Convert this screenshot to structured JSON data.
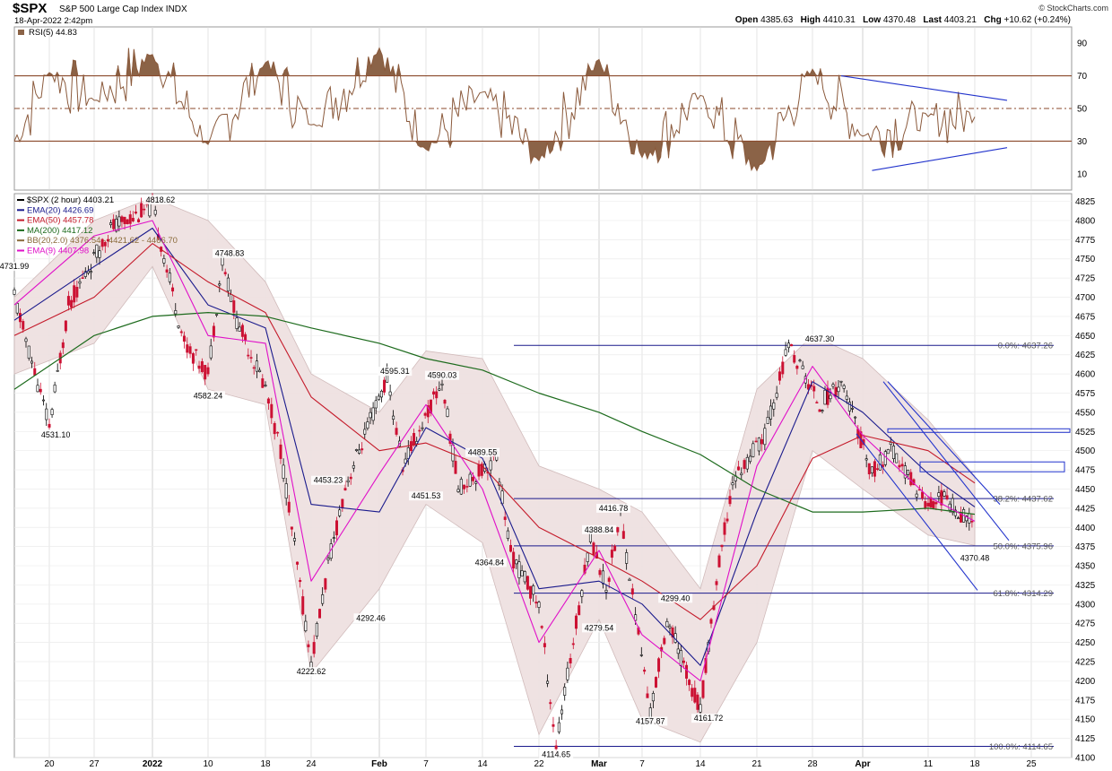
{
  "header": {
    "symbol": "$SPX",
    "name": "S&P 500 Large Cap Index",
    "exchange": "INDX",
    "date": "18-Apr-2022 2:42pm",
    "quote_labels": {
      "open": "Open",
      "high": "High",
      "low": "Low",
      "last": "Last",
      "chg": "Chg"
    },
    "quote_values": {
      "open": "4385.63",
      "high": "4410.31",
      "low": "4370.48",
      "last": "4403.21",
      "chg": "+10.62 (+0.24%)"
    },
    "brand": "© StockCharts.com"
  },
  "colors": {
    "candle_up": "#000000",
    "candle_down": "#cc1133",
    "ema20": "#1a1a8c",
    "ema50": "#c41a2a",
    "ma200": "#1d6b1d",
    "ema9": "#e010c8",
    "bb_fill": "#efe1e1",
    "bb_line": "#cfb8b8",
    "rsi_line": "#8b5a3c",
    "rsi_fill": "#8b6347",
    "fib_line": "#1a1a8c",
    "grid": "#d8d8d8"
  },
  "chart_data": [
    {
      "type": "line",
      "title": "RSI(5) 44.83",
      "legend": {
        "name": "RSI(5)",
        "value": "44.83"
      },
      "ylim": [
        0,
        100
      ],
      "y_ticks": [
        "90",
        "70",
        "50",
        "30",
        "10"
      ],
      "reference_lines": [
        70,
        50,
        30
      ],
      "x": [
        "Dec 17",
        "Dec 20",
        "Dec 27",
        "Jan 3",
        "Jan 10",
        "Jan 18",
        "Jan 24",
        "Feb 1",
        "Feb 7",
        "Feb 14",
        "Feb 22",
        "Mar 1",
        "Mar 7",
        "Mar 14",
        "Mar 21",
        "Mar 28",
        "Apr 4",
        "Apr 11",
        "Apr 18"
      ],
      "series": [
        {
          "name": "RSI(5)",
          "values": [
            30,
            72,
            55,
            83,
            28,
            78,
            40,
            87,
            25,
            60,
            18,
            80,
            20,
            58,
            12,
            74,
            33,
            45,
            44.83
          ]
        }
      ],
      "annotations": [
        "triangle pattern Apr 1 to Apr 20, upper line from 70 to 55, lower line from 12 to 26"
      ]
    },
    {
      "type": "line",
      "title": "$SPX (2 hour) 4403.21",
      "legend": [
        {
          "name": "$SPX (2 hour)",
          "value": "4403.21"
        },
        {
          "name": "EMA(20)",
          "value": "4426.69"
        },
        {
          "name": "EMA(50)",
          "value": "4457.78"
        },
        {
          "name": "MA(200)",
          "value": "4417.12"
        },
        {
          "name": "BB(20,2.0)",
          "value": "4376.54 - 4421.62 - 4466.70"
        },
        {
          "name": "EMA(9)",
          "value": "4407.98"
        }
      ],
      "ylim": [
        4100,
        4835
      ],
      "y_ticks": [
        "4825",
        "4800",
        "4775",
        "4750",
        "4725",
        "4700",
        "4675",
        "4650",
        "4625",
        "4600",
        "4575",
        "4550",
        "4525",
        "4500",
        "4475",
        "4450",
        "4425",
        "4400",
        "4375",
        "4350",
        "4325",
        "4300",
        "4275",
        "4250",
        "4225",
        "4200",
        "4175",
        "4150",
        "4125",
        "4100"
      ],
      "x_ticks": [
        "20",
        "27",
        "2022",
        "10",
        "18",
        "24",
        "Feb",
        "7",
        "14",
        "22",
        "Mar",
        "7",
        "14",
        "21",
        "28",
        "Apr",
        "11",
        "18",
        "25"
      ],
      "series": [
        {
          "name": "$SPX (2 hour)",
          "x": [
            "Dec 17",
            "Dec 20",
            "Dec 23",
            "Dec 29",
            "Jan 3",
            "Jan 7",
            "Jan 10",
            "Jan 12",
            "Jan 14",
            "Jan 18",
            "Jan 20",
            "Jan 24",
            "Jan 26",
            "Jan 28",
            "Feb 2",
            "Feb 4",
            "Feb 9",
            "Feb 11",
            "Feb 16",
            "Feb 18",
            "Feb 22",
            "Feb 24",
            "Feb 28",
            "Mar 2",
            "Mar 4",
            "Mar 8",
            "Mar 10",
            "Mar 14",
            "Mar 16",
            "Mar 18",
            "Mar 22",
            "Mar 25",
            "Mar 29",
            "Apr 1",
            "Apr 5",
            "Apr 7",
            "Apr 11",
            "Apr 13",
            "Apr 18"
          ],
          "values": [
            4700,
            4531.1,
            4690,
            4790,
            4818.62,
            4640,
            4600,
            4748.83,
            4670,
            4582.24,
            4500,
            4222.62,
            4350,
            4453.23,
            4595.31,
            4480,
            4590.03,
            4451.53,
            4489.55,
            4364.84,
            4300,
            4114.65,
            4388.84,
            4320,
            4416.78,
            4157.87,
            4280,
            4161.72,
            4330,
            4460,
            4520,
            4637.3,
            4560,
            4590,
            4470,
            4500,
            4430,
            4440,
            4403.21
          ]
        },
        {
          "name": "EMA(20)",
          "x": [
            "Dec 17",
            "Dec 27",
            "Jan 3",
            "Jan 10",
            "Jan 18",
            "Jan 24",
            "Feb 1",
            "Feb 7",
            "Feb 14",
            "Feb 22",
            "Mar 1",
            "Mar 7",
            "Mar 14",
            "Mar 21",
            "Mar 28",
            "Apr 4",
            "Apr 11",
            "Apr 18"
          ],
          "values": [
            4670,
            4740,
            4790,
            4690,
            4660,
            4430,
            4420,
            4530,
            4490,
            4320,
            4330,
            4300,
            4220,
            4420,
            4590,
            4550,
            4470,
            4426.69
          ]
        },
        {
          "name": "EMA(50)",
          "x": [
            "Dec 17",
            "Dec 27",
            "Jan 3",
            "Jan 10",
            "Jan 18",
            "Jan 24",
            "Feb 1",
            "Feb 7",
            "Feb 14",
            "Feb 22",
            "Mar 1",
            "Mar 7",
            "Mar 14",
            "Mar 21",
            "Mar 28",
            "Apr 4",
            "Apr 11",
            "Apr 18"
          ],
          "values": [
            4650,
            4700,
            4770,
            4720,
            4680,
            4570,
            4500,
            4510,
            4480,
            4400,
            4360,
            4330,
            4280,
            4350,
            4490,
            4520,
            4500,
            4457.78
          ]
        },
        {
          "name": "MA(200)",
          "x": [
            "Dec 17",
            "Dec 27",
            "Jan 3",
            "Jan 10",
            "Jan 18",
            "Jan 24",
            "Feb 1",
            "Feb 7",
            "Feb 14",
            "Feb 22",
            "Mar 1",
            "Mar 7",
            "Mar 14",
            "Mar 21",
            "Mar 28",
            "Apr 4",
            "Apr 11",
            "Apr 18"
          ],
          "values": [
            4580,
            4650,
            4675,
            4680,
            4675,
            4660,
            4640,
            4620,
            4605,
            4575,
            4550,
            4525,
            4495,
            4450,
            4420,
            4420,
            4425,
            4417.12
          ]
        },
        {
          "name": "EMA(9)",
          "x": [
            "Dec 17",
            "Dec 27",
            "Jan 3",
            "Jan 10",
            "Jan 18",
            "Jan 24",
            "Feb 1",
            "Feb 7",
            "Feb 14",
            "Feb 22",
            "Mar 1",
            "Mar 7",
            "Mar 14",
            "Mar 21",
            "Mar 28",
            "Apr 4",
            "Apr 11",
            "Apr 18"
          ],
          "values": [
            4690,
            4780,
            4800,
            4650,
            4640,
            4330,
            4470,
            4560,
            4450,
            4250,
            4370,
            4260,
            4200,
            4480,
            4610,
            4520,
            4440,
            4407.98
          ]
        }
      ],
      "bollinger_bands": {
        "x": [
          "Dec 17",
          "Dec 27",
          "Jan 3",
          "Jan 10",
          "Jan 18",
          "Jan 24",
          "Feb 1",
          "Feb 7",
          "Feb 14",
          "Feb 22",
          "Mar 1",
          "Mar 7",
          "Mar 14",
          "Mar 21",
          "Mar 28",
          "Apr 4",
          "Apr 11",
          "Apr 18"
        ],
        "upper": [
          4700,
          4800,
          4830,
          4800,
          4720,
          4600,
          4550,
          4630,
          4620,
          4480,
          4450,
          4420,
          4320,
          4580,
          4650,
          4620,
          4540,
          4466.7
        ],
        "lower": [
          4600,
          4640,
          4740,
          4580,
          4560,
          4210,
          4320,
          4430,
          4380,
          4130,
          4280,
          4150,
          4120,
          4250,
          4500,
          4450,
          4390,
          4376.54
        ]
      },
      "data_labels": [
        {
          "x": "Dec 17",
          "y": 4731.99,
          "text": "4731.99"
        },
        {
          "x": "Dec 21",
          "y": 4531.1,
          "text": "4531.10"
        },
        {
          "x": "Jan 4",
          "y": 4818.62,
          "text": "4818.62"
        },
        {
          "x": "Jan 13",
          "y": 4748.83,
          "text": "4748.83"
        },
        {
          "x": "Jan 10",
          "y": 4582.24,
          "text": "4582.24"
        },
        {
          "x": "Jan 26",
          "y": 4453.23,
          "text": "4453.23"
        },
        {
          "x": "Jan 24",
          "y": 4222.62,
          "text": "4222.62"
        },
        {
          "x": "Jan 31",
          "y": 4292.46,
          "text": "4292.46"
        },
        {
          "x": "Feb 3",
          "y": 4595.31,
          "text": "4595.31"
        },
        {
          "x": "Feb 9",
          "y": 4590.03,
          "text": "4590.03"
        },
        {
          "x": "Feb 7",
          "y": 4451.53,
          "text": "4451.53"
        },
        {
          "x": "Feb 14",
          "y": 4489.55,
          "text": "4489.55"
        },
        {
          "x": "Feb 15",
          "y": 4364.84,
          "text": "4364.84"
        },
        {
          "x": "Mar 1",
          "y": 4388.84,
          "text": "4388.84"
        },
        {
          "x": "Mar 3",
          "y": 4416.78,
          "text": "4416.78"
        },
        {
          "x": "Mar 1",
          "y": 4279.54,
          "text": "4279.54"
        },
        {
          "x": "Mar 11",
          "y": 4299.4,
          "text": "4299.40"
        },
        {
          "x": "Feb 24",
          "y": 4114.65,
          "text": "4114.65"
        },
        {
          "x": "Mar 8",
          "y": 4157.87,
          "text": "4157.87"
        },
        {
          "x": "Mar 15",
          "y": 4161.72,
          "text": "4161.72"
        },
        {
          "x": "Mar 29",
          "y": 4637.3,
          "text": "4637.30"
        },
        {
          "x": "Apr 18",
          "y": 4370.48,
          "text": "4370.48"
        }
      ],
      "fibonacci": [
        {
          "label": "0.0%: 4637.26",
          "value": 4637.26
        },
        {
          "label": "38.2%: 4437.62",
          "value": 4437.62
        },
        {
          "label": "50.0%: 4375.96",
          "value": 4375.96
        },
        {
          "label": "61.8%: 4314.29",
          "value": 4314.29
        },
        {
          "label": "100.0%: 4114.65",
          "value": 4114.65
        }
      ],
      "annotations": [
        "descending channel from Apr 1 to Apr 20",
        "horizontal box near 4525",
        "horizontal box near 4480"
      ]
    }
  ]
}
